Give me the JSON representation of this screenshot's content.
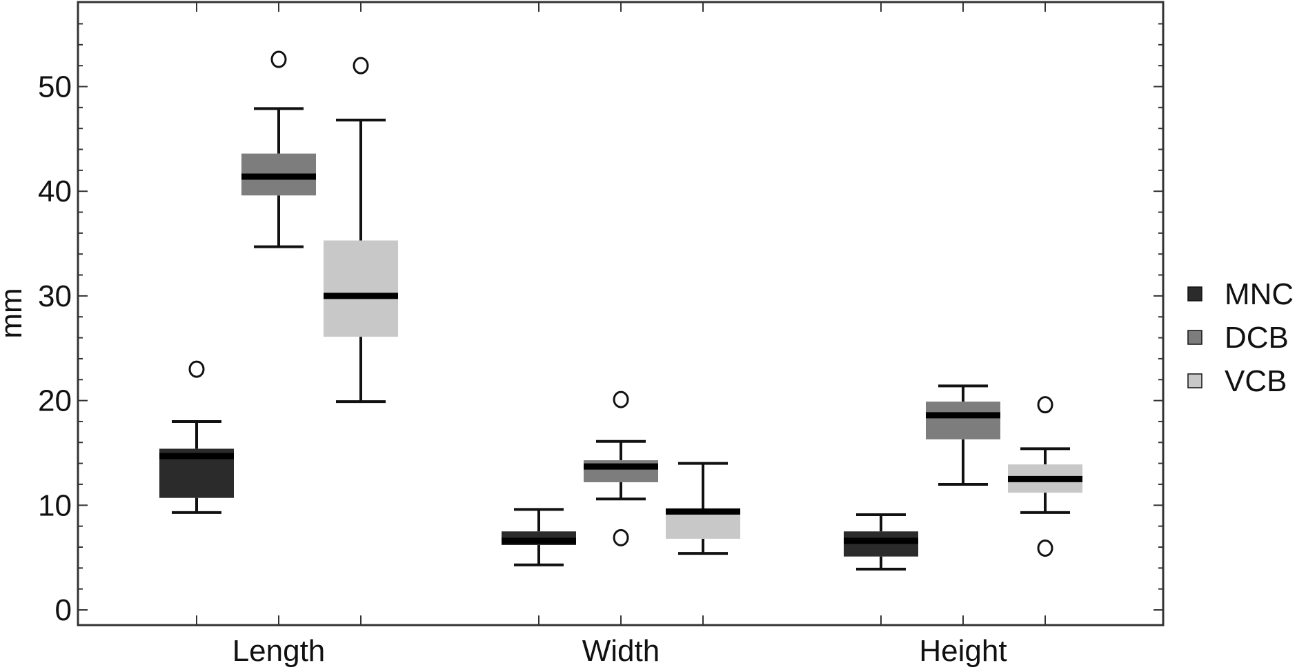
{
  "chart_data": {
    "type": "box",
    "title": "",
    "xlabel": "",
    "ylabel": "mm",
    "ylim": [
      -1.5,
      58
    ],
    "yticks": [
      0,
      10,
      20,
      30,
      40,
      50
    ],
    "grid": false,
    "legend_position": "right",
    "categories": [
      "Length",
      "Width",
      "Height"
    ],
    "series": [
      {
        "name": "MNC",
        "color": "#2b2b2b",
        "boxes": [
          {
            "category": "Length",
            "whisker_low": 9.3,
            "q1": 10.7,
            "median": 14.7,
            "q3": 15.4,
            "whisker_high": 18.0,
            "outliers": [
              23.0
            ]
          },
          {
            "category": "Width",
            "whisker_low": 4.3,
            "q1": 6.2,
            "median": 6.6,
            "q3": 7.5,
            "whisker_high": 9.6,
            "outliers": []
          },
          {
            "category": "Height",
            "whisker_low": 3.9,
            "q1": 5.1,
            "median": 6.6,
            "q3": 7.5,
            "whisker_high": 9.1,
            "outliers": []
          }
        ]
      },
      {
        "name": "DCB",
        "color": "#7d7d7d",
        "boxes": [
          {
            "category": "Length",
            "whisker_low": 34.7,
            "q1": 39.6,
            "median": 41.4,
            "q3": 43.6,
            "whisker_high": 47.9,
            "outliers": [
              52.6
            ]
          },
          {
            "category": "Width",
            "whisker_low": 10.6,
            "q1": 12.2,
            "median": 13.7,
            "q3": 14.3,
            "whisker_high": 16.1,
            "outliers": [
              6.9,
              20.1
            ]
          },
          {
            "category": "Height",
            "whisker_low": 12.0,
            "q1": 16.3,
            "median": 18.6,
            "q3": 19.9,
            "whisker_high": 21.4,
            "outliers": []
          }
        ]
      },
      {
        "name": "VCB",
        "color": "#c8c8c8",
        "boxes": [
          {
            "category": "Length",
            "whisker_low": 19.9,
            "q1": 26.1,
            "median": 30.0,
            "q3": 35.3,
            "whisker_high": 46.8,
            "outliers": [
              52.0
            ]
          },
          {
            "category": "Width",
            "whisker_low": 5.4,
            "q1": 6.8,
            "median": 9.4,
            "q3": 9.6,
            "whisker_high": 14.0,
            "outliers": []
          },
          {
            "category": "Height",
            "whisker_low": 9.3,
            "q1": 11.2,
            "median": 12.5,
            "q3": 13.9,
            "whisker_high": 15.4,
            "outliers": [
              5.9,
              19.6
            ]
          }
        ]
      }
    ]
  }
}
